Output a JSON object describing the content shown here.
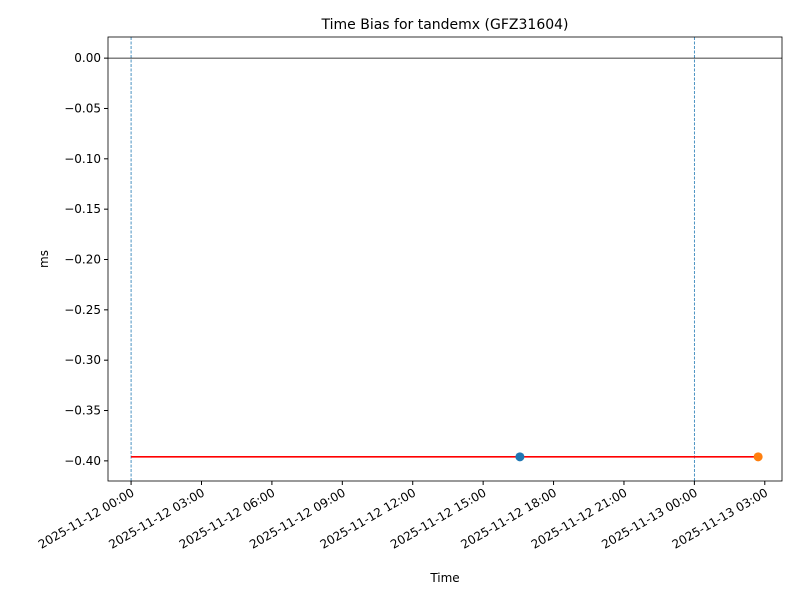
{
  "chart_data": {
    "type": "line",
    "title": "Time Bias for tandemx (GFZ31604)",
    "xlabel": "Time",
    "ylabel": "ms",
    "series": [
      {
        "color": "#ff0000",
        "style": "line",
        "x": [
          "2025-11-12 00:00",
          "2025-11-13 02:43"
        ],
        "values": [
          -0.396,
          -0.396
        ]
      },
      {
        "color": "#1f77b4",
        "style": "marker",
        "x": [
          "2025-11-12 16:34"
        ],
        "values": [
          -0.396
        ]
      },
      {
        "color": "#ff7f0e",
        "style": "marker",
        "x": [
          "2025-11-13 02:43"
        ],
        "values": [
          -0.396
        ]
      }
    ],
    "hlines": [
      {
        "value": 0,
        "color": "#000000"
      }
    ],
    "vlines": [
      {
        "x": "2025-11-12 00:00",
        "color": "#1f77b4"
      },
      {
        "x": "2025-11-13 00:00",
        "color": "#1f77b4"
      }
    ],
    "xlim": [
      "2025-11-11 23:01",
      "2025-11-13 03:44"
    ],
    "xticks": [
      "2025-11-12 00:00",
      "2025-11-12 03:00",
      "2025-11-12 06:00",
      "2025-11-12 09:00",
      "2025-11-12 12:00",
      "2025-11-12 15:00",
      "2025-11-12 18:00",
      "2025-11-12 21:00",
      "2025-11-13 00:00",
      "2025-11-13 03:00"
    ],
    "ylim": [
      -0.42,
      0.021
    ],
    "yticks": [
      {
        "value": 0,
        "label": "0.00"
      },
      {
        "value": -0.05,
        "label": "−0.05"
      },
      {
        "value": -0.1,
        "label": "−0.10"
      },
      {
        "value": -0.15,
        "label": "−0.15"
      },
      {
        "value": -0.2,
        "label": "−0.20"
      },
      {
        "value": -0.25,
        "label": "−0.25"
      },
      {
        "value": -0.3,
        "label": "−0.30"
      },
      {
        "value": -0.35,
        "label": "−0.35"
      },
      {
        "value": -0.4,
        "label": "−0.40"
      }
    ]
  }
}
